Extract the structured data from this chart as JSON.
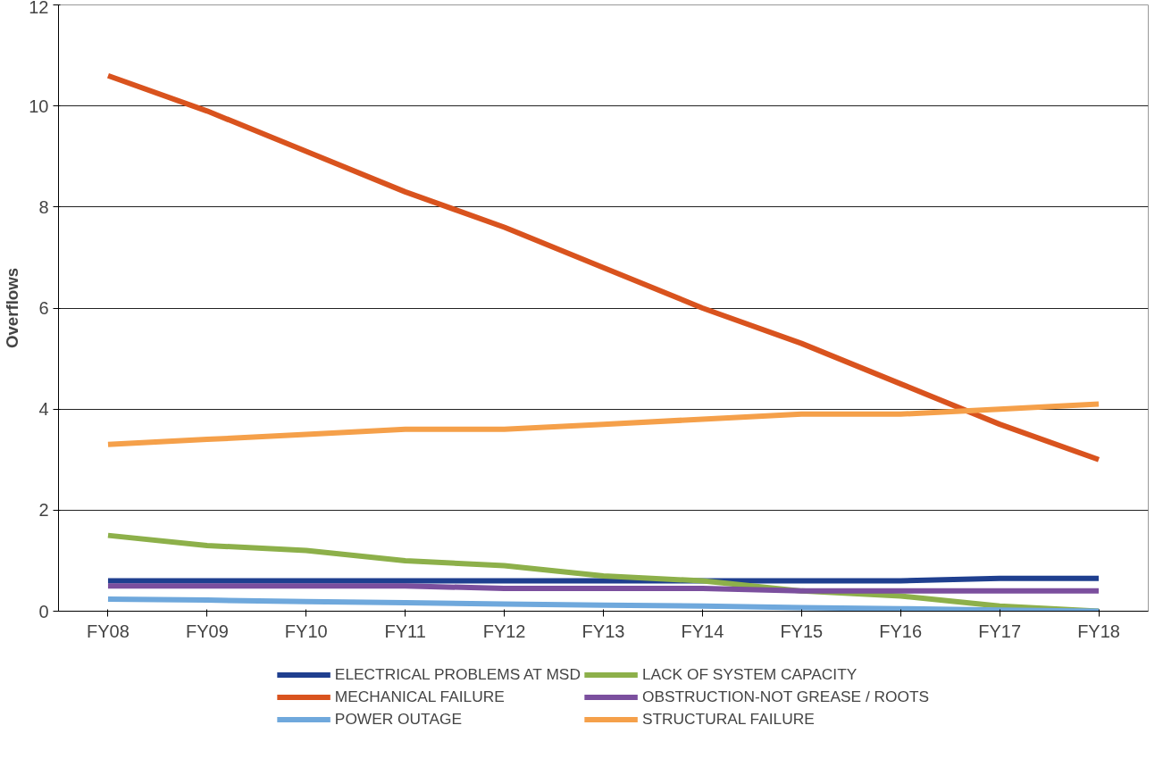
{
  "chart_data": {
    "type": "line",
    "ylabel": "Overflows",
    "categories": [
      "FY08",
      "FY09",
      "FY10",
      "FY11",
      "FY12",
      "FY13",
      "FY14",
      "FY15",
      "FY16",
      "FY17",
      "FY18"
    ],
    "series": [
      {
        "name": "ELECTRICAL PROBLEMS AT MSD",
        "color": "#1f3f8f",
        "values": [
          0.6,
          0.6,
          0.6,
          0.6,
          0.6,
          0.6,
          0.6,
          0.6,
          0.6,
          0.65,
          0.65
        ]
      },
      {
        "name": "LACK OF SYSTEM CAPACITY",
        "color": "#8db04a",
        "values": [
          1.5,
          1.3,
          1.2,
          1.0,
          0.9,
          0.7,
          0.6,
          0.4,
          0.3,
          0.1,
          0.0
        ]
      },
      {
        "name": "MECHANICAL FAILURE",
        "color": "#d9531e",
        "values": [
          10.6,
          9.9,
          9.1,
          8.3,
          7.6,
          6.8,
          6.0,
          5.3,
          4.5,
          3.7,
          3.0
        ]
      },
      {
        "name": "OBSTRUCTION-NOT GREASE / ROOTS",
        "color": "#7b4f9e",
        "values": [
          0.5,
          0.5,
          0.5,
          0.5,
          0.45,
          0.45,
          0.45,
          0.4,
          0.4,
          0.4,
          0.4
        ]
      },
      {
        "name": "POWER OUTAGE",
        "color": "#6fa8dc",
        "values": [
          0.24,
          0.22,
          0.19,
          0.17,
          0.14,
          0.12,
          0.1,
          0.07,
          0.05,
          0.02,
          0.0
        ]
      },
      {
        "name": "STRUCTURAL FAILURE",
        "color": "#f5a04a",
        "values": [
          3.3,
          3.4,
          3.5,
          3.6,
          3.6,
          3.7,
          3.8,
          3.9,
          3.9,
          4.0,
          4.1
        ]
      }
    ],
    "ylim": [
      0,
      12
    ],
    "yticks": [
      0,
      2,
      4,
      6,
      8,
      10,
      12
    ],
    "grid": "y",
    "legend": "bottom",
    "marker": "none",
    "line_style": "solid"
  }
}
